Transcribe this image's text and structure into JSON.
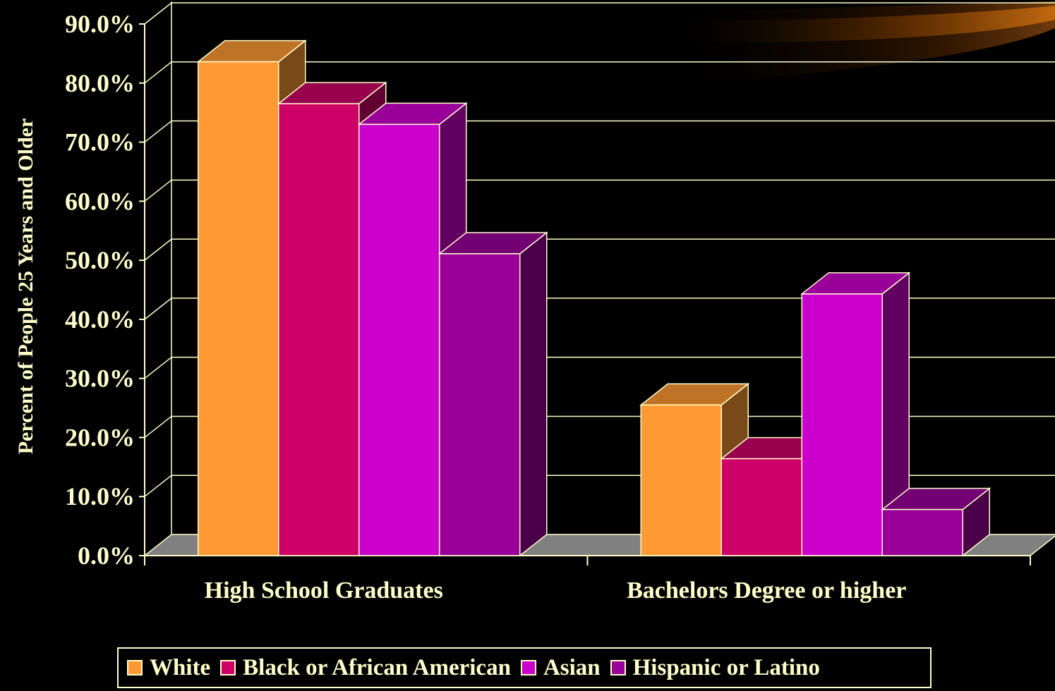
{
  "chart_data": {
    "type": "bar",
    "categories": [
      "High School Graduates",
      "Bachelors Degree or higher"
    ],
    "series": [
      {
        "name": "White",
        "values": [
          83.6,
          25.5
        ],
        "color": "#ff9933"
      },
      {
        "name": "Black or African American",
        "values": [
          76.5,
          16.4
        ],
        "color": "#cc0066"
      },
      {
        "name": "Asian",
        "values": [
          73.0,
          44.3
        ],
        "color": "#cc00cc"
      },
      {
        "name": "Hispanic or Latino",
        "values": [
          51.1,
          7.8
        ],
        "color": "#990099"
      }
    ],
    "ylabel": "Percent of People 25 Years and Older",
    "ylim": [
      0,
      90
    ],
    "yticks": [
      "0.0%",
      "10.0%",
      "20.0%",
      "30.0%",
      "40.0%",
      "50.0%",
      "60.0%",
      "70.0%",
      "80.0%",
      "90.0%"
    ],
    "grid": true,
    "legend_position": "bottom"
  }
}
